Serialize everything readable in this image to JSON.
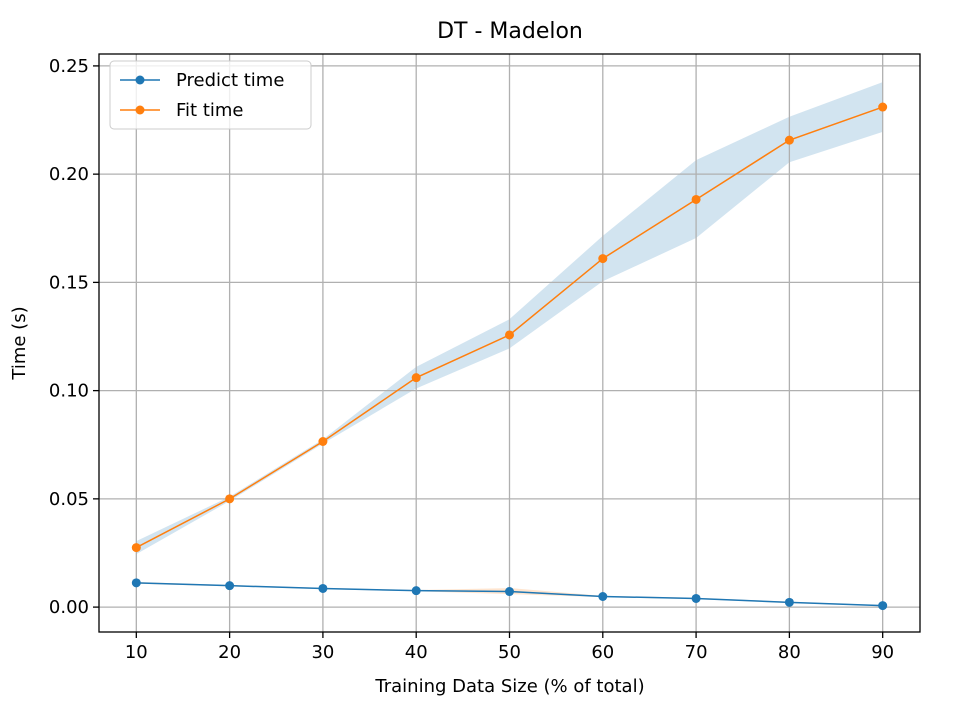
{
  "chart_data": {
    "type": "line",
    "title": "DT - Madelon",
    "xlabel": "Training Data Size (% of total)",
    "ylabel": "Time (s)",
    "x": [
      10,
      20,
      30,
      40,
      50,
      60,
      70,
      80,
      90
    ],
    "xlim": [
      6,
      94
    ],
    "ylim": [
      -0.0115,
      0.2555
    ],
    "xticks": [
      10,
      20,
      30,
      40,
      50,
      60,
      70,
      80,
      90
    ],
    "yticks": [
      "0.00",
      "0.05",
      "0.10",
      "0.15",
      "0.20",
      "0.25"
    ],
    "grid": true,
    "legend_position": "top-left",
    "series": [
      {
        "name": "Predict time",
        "color": "#1f77b4",
        "values": [
          0.0112,
          0.0099,
          0.0086,
          0.0076,
          0.0072,
          0.0049,
          0.004,
          0.0022,
          0.0007
        ],
        "band_lower": [
          0.0108,
          0.0096,
          0.0083,
          0.0073,
          0.006,
          0.0046,
          0.0037,
          0.0019,
          0.0005
        ],
        "band_upper": [
          0.0116,
          0.0102,
          0.0089,
          0.0079,
          0.0088,
          0.0052,
          0.0043,
          0.0025,
          0.0009
        ],
        "band_color": "#ff7f0e"
      },
      {
        "name": "Fit time",
        "color": "#ff7f0e",
        "values": [
          0.0275,
          0.05,
          0.0765,
          0.106,
          0.1257,
          0.161,
          0.1883,
          0.2157,
          0.231
        ],
        "band_lower": [
          0.0245,
          0.049,
          0.0755,
          0.101,
          0.1195,
          0.1505,
          0.1705,
          0.2055,
          0.2195
        ],
        "band_upper": [
          0.0305,
          0.051,
          0.0775,
          0.111,
          0.133,
          0.1715,
          0.2065,
          0.2265,
          0.2425
        ],
        "band_color": "#1f77b4"
      }
    ]
  }
}
